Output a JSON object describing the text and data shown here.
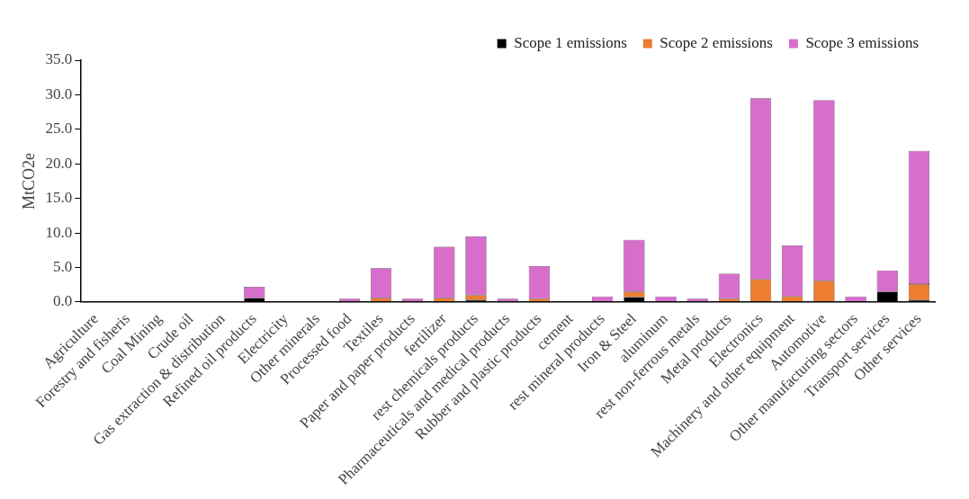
{
  "chart_data": {
    "type": "bar",
    "stacked": true,
    "ylabel": "MtCO2e",
    "legend": "top right",
    "grid": false,
    "categories": [
      "Agriculture",
      "Forestry and fisheris",
      "Coal Mining",
      "Crude oil",
      "Gas extraction & distribution",
      "Refined oil products",
      "Electricity",
      "Other minerals",
      "Processed food",
      "Textiles",
      "Paper and paper products",
      "fertilizer",
      "rest chemicals products",
      "Pharmaceuticals and medical products",
      "Rubber and plastic products",
      "cement",
      "rest mineral products",
      "Iron & Steel",
      "aluminum",
      "rest non-ferrous metals",
      "Metal products",
      "Electronics",
      "Machinery and other equipment",
      "Automotive",
      "Other manufacturing sectors",
      "Transport services",
      "Other services"
    ],
    "ylim": [
      0,
      35
    ],
    "yticks": [
      {
        "value": 0,
        "label": "0.0"
      },
      {
        "value": 5,
        "label": "5.0"
      },
      {
        "value": 10,
        "label": "10.0"
      },
      {
        "value": 15,
        "label": "15.0"
      },
      {
        "value": 20,
        "label": "20.0"
      },
      {
        "value": 25,
        "label": "25.0"
      },
      {
        "value": 30,
        "label": "30.0"
      },
      {
        "value": 35,
        "label": "35.0"
      }
    ],
    "series": [
      {
        "name": "Scope 1 emissions",
        "color": "#000000",
        "values": [
          0,
          0,
          0,
          0,
          0,
          0.6,
          0,
          0,
          0,
          0,
          0,
          0,
          0.3,
          0,
          0,
          0,
          0,
          0.7,
          0,
          0,
          0,
          0,
          0,
          0,
          0,
          1.5,
          0.3
        ]
      },
      {
        "name": "Scope 2 emissions",
        "color": "#ed7d31",
        "values": [
          0,
          0,
          0,
          0,
          0,
          0,
          0,
          0,
          0,
          0.6,
          0,
          0.6,
          0.7,
          0,
          0.5,
          0,
          0,
          0.8,
          0,
          0,
          0.5,
          3.3,
          0.8,
          3.1,
          0,
          0,
          2.3
        ]
      },
      {
        "name": "Scope 3 emissions",
        "color": "#d86ecc",
        "values": [
          0.1,
          0.1,
          0,
          0,
          0.1,
          1.6,
          0.1,
          0.1,
          0.5,
          4.3,
          0.5,
          7.4,
          8.5,
          0.5,
          4.7,
          0.1,
          0.8,
          7.5,
          0.8,
          0.5,
          3.6,
          26.2,
          7.4,
          26.1,
          0.8,
          3.1,
          19.3
        ]
      }
    ]
  }
}
